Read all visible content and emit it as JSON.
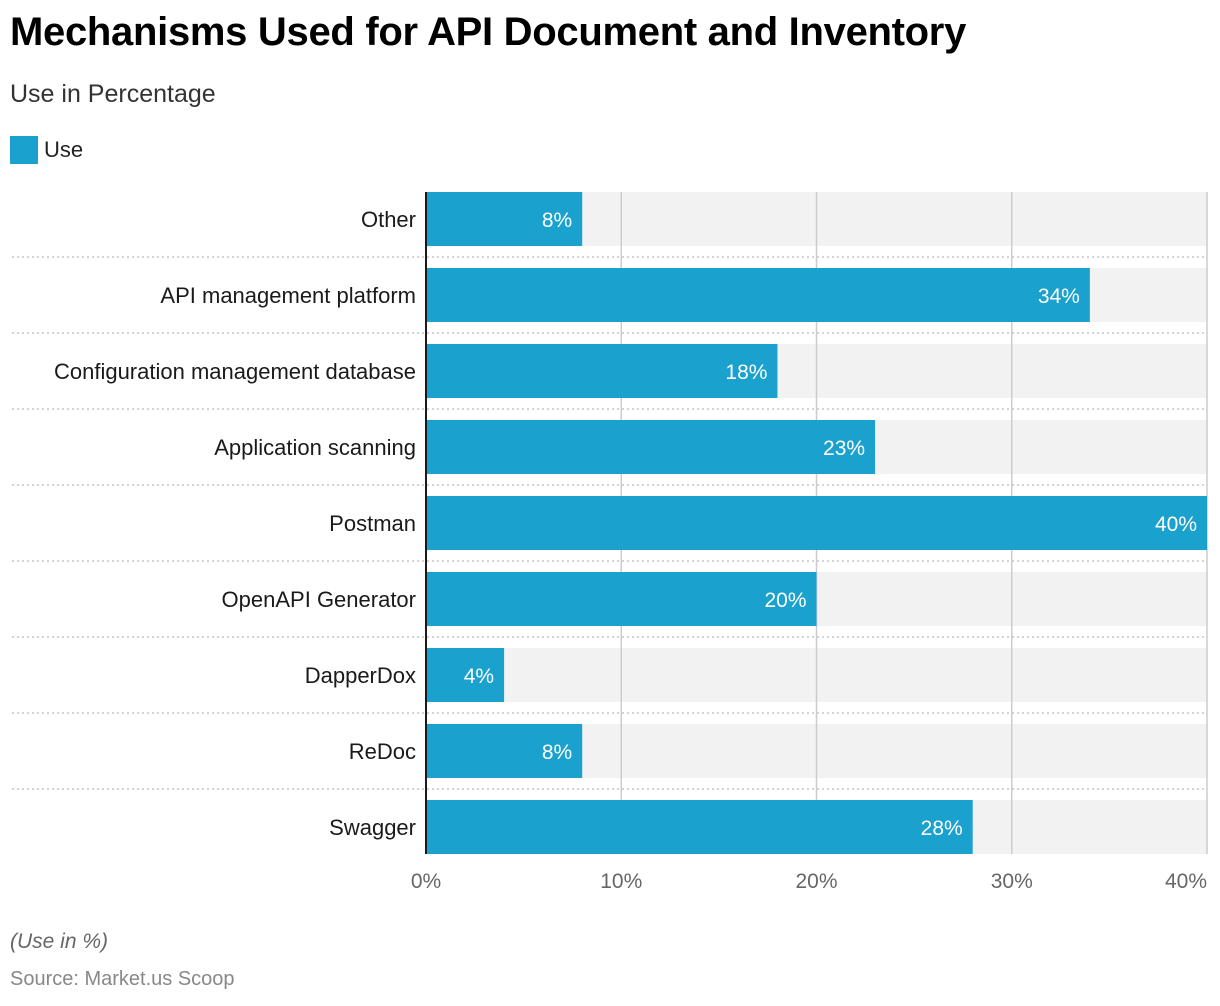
{
  "title": "Mechanisms Used for API Document and Inventory",
  "subtitle": "Use in Percentage",
  "footnote": "(Use in %)",
  "source": "Source: Market.us Scoop",
  "colors": {
    "bar": "#1aa1ce",
    "track": "#f2f2f2",
    "grid": "#cccccc",
    "axis": "#1a1a1a"
  },
  "chart_data": {
    "type": "bar",
    "orientation": "horizontal",
    "categories": [
      "Other",
      "API management platform",
      "Configuration management database",
      "Application scanning",
      "Postman",
      "OpenAPI Generator",
      "DapperDox",
      "ReDoc",
      "Swagger"
    ],
    "series": [
      {
        "name": "Use",
        "values": [
          8,
          34,
          18,
          23,
          40,
          20,
          4,
          8,
          28
        ]
      }
    ],
    "data_labels": [
      "8%",
      "34%",
      "18%",
      "23%",
      "40%",
      "20%",
      "4%",
      "8%",
      "28%"
    ],
    "xlim": [
      0,
      40
    ],
    "xticks": [
      0,
      10,
      20,
      30,
      40
    ],
    "xtick_labels": [
      "0%",
      "10%",
      "20%",
      "30%",
      "40%"
    ],
    "grid": true,
    "legend_position": "top-left"
  }
}
